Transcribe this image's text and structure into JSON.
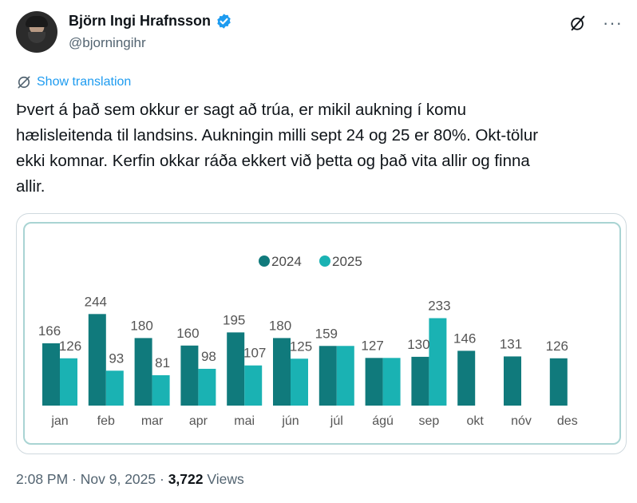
{
  "author": {
    "display_name": "Björn Ingi Hrafnsson",
    "handle": "@bjorningihr",
    "verified_color": "#1d9bf0"
  },
  "actions": {
    "grok_icon": "grok-icon",
    "more_label": "···"
  },
  "translation": {
    "label": "Show translation",
    "icon": "translate-icon",
    "color": "#1d9bf0"
  },
  "tweet": {
    "lines": [
      "Þvert á það sem okkur er sagt að trúa, er mikil aukning í komu",
      "hælisleitenda til landsins. Aukningin milli sept 24 og 25 er 80%. Okt-tölur",
      "ekki komnar. Kerfin okkar ráða ekkert við þetta og það vita allir og finna",
      "allir."
    ]
  },
  "meta": {
    "time": "2:08 PM",
    "separator1": " · ",
    "date": "Nov 9, 2025",
    "separator2": " · ",
    "views_count": "3,722",
    "views_label": " Views"
  },
  "chart_data": {
    "type": "bar",
    "title": "",
    "xlabel": "",
    "ylabel": "",
    "categories": [
      "jan",
      "feb",
      "mar",
      "apr",
      "mai",
      "jún",
      "júl",
      "ágú",
      "sep",
      "okt",
      "nóv",
      "des"
    ],
    "series": [
      {
        "name": "2024",
        "color": "#107a7c",
        "values": [
          166,
          244,
          180,
          160,
          195,
          180,
          159,
          127,
          130,
          146,
          131,
          126
        ]
      },
      {
        "name": "2025",
        "color": "#1ab2b3",
        "values": [
          126,
          93,
          81,
          98,
          107,
          125,
          159,
          127,
          233,
          null,
          null,
          null
        ]
      }
    ],
    "value_labels": [
      [
        "166",
        "126"
      ],
      [
        "244",
        "93"
      ],
      [
        "180",
        "81"
      ],
      [
        "160",
        "98"
      ],
      [
        "195",
        "107"
      ],
      [
        "180",
        "125"
      ],
      [
        "159",
        ""
      ],
      [
        "127",
        ""
      ],
      [
        "130",
        "233"
      ],
      [
        "146",
        ""
      ],
      [
        "131",
        ""
      ],
      [
        "126",
        ""
      ]
    ],
    "ylim": [
      0,
      260
    ],
    "legend_position": "top-center",
    "grid": false
  }
}
